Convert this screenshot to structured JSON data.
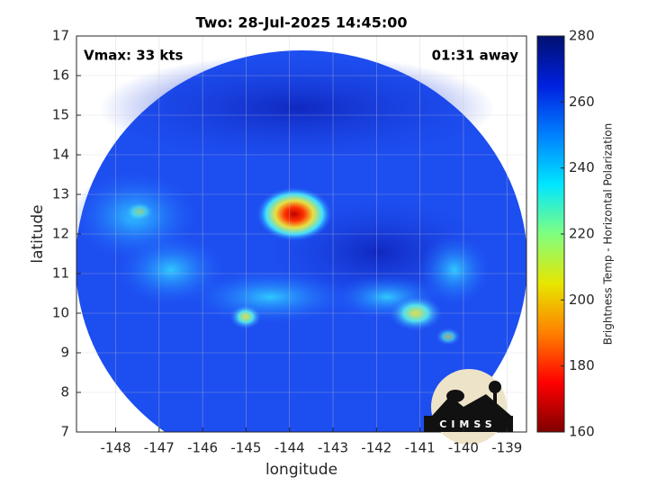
{
  "chart_data": {
    "type": "map",
    "title": "Two: 28-Jul-2025 14:45:00",
    "xlabel": "longitude",
    "ylabel": "latitude",
    "annotations": [
      "Vmax: 33 kts",
      "01:31 away"
    ],
    "xlim": [
      -148.9,
      -138.55
    ],
    "xticks": [
      -148,
      -147,
      -146,
      -145,
      -144,
      -143,
      -142,
      -141,
      -140,
      -139
    ],
    "ylim": [
      7,
      17
    ],
    "yticks": [
      7,
      8,
      9,
      10,
      11,
      12,
      13,
      14,
      15,
      16,
      17
    ],
    "grid": true,
    "colorbar": {
      "label": "Brightness Temp - Horizontal Polarization",
      "clim": [
        160,
        280
      ],
      "ticks": [
        160,
        180,
        200,
        220,
        240,
        260,
        280
      ],
      "colormap": [
        "#800000",
        "#ff0000",
        "#ff8000",
        "#e6e600",
        "#80ff80",
        "#00e6ff",
        "#0080ff",
        "#0020e0",
        "#001070"
      ]
    },
    "logo_text": "CIMSS"
  }
}
